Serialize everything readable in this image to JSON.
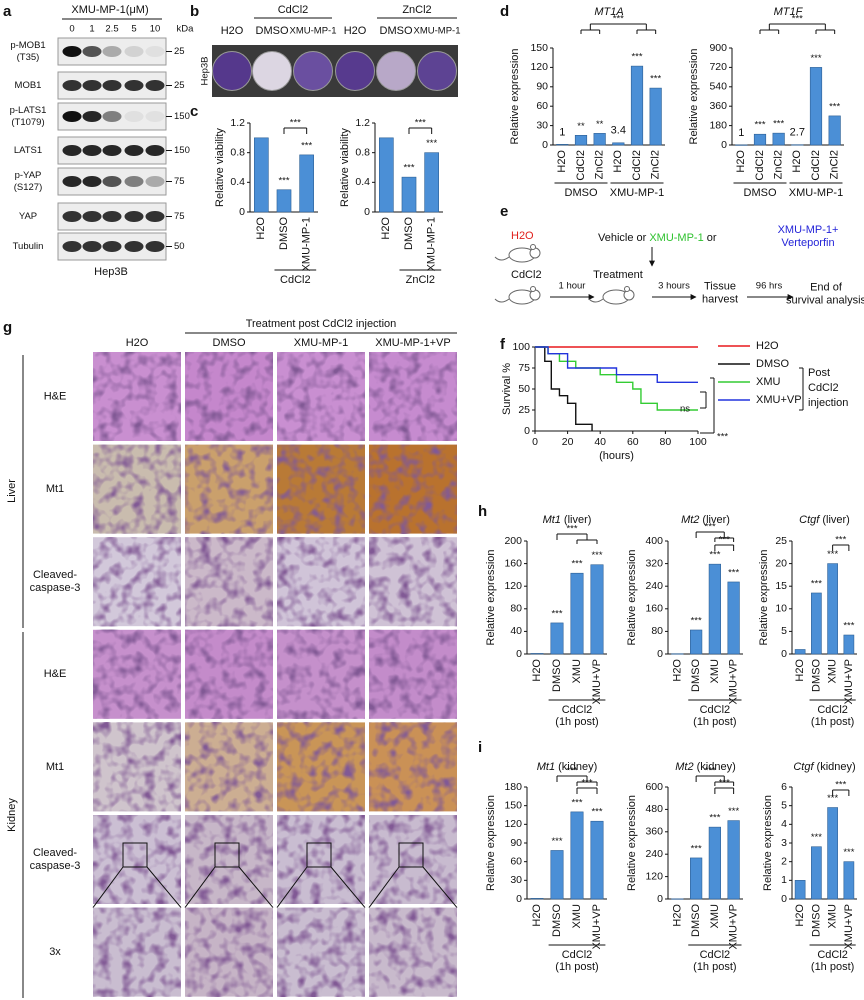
{
  "panel_labels": [
    "a",
    "b",
    "c",
    "d",
    "e",
    "f",
    "g",
    "h",
    "i"
  ],
  "blot": {
    "treatment": "XMU-MP-1(μM)",
    "doses": [
      0,
      1,
      2.5,
      5,
      10
    ],
    "unit": "kDa",
    "rows": [
      {
        "label": [
          "p-MOB1",
          "(T35)"
        ],
        "marker": 25
      },
      {
        "label": [
          "MOB1"
        ],
        "marker": 25
      },
      {
        "label": [
          "p-LATS1",
          "(T1079)"
        ],
        "marker": 150
      },
      {
        "label": [
          "LATS1"
        ],
        "marker": 150
      },
      {
        "label": [
          "p-YAP",
          "(S127)"
        ],
        "marker": 75
      },
      {
        "label": [
          "YAP"
        ],
        "marker": 75
      },
      {
        "label": [
          "Tubulin"
        ],
        "marker": 50
      }
    ],
    "cell_line": "Hep3B"
  },
  "colony": {
    "cell_line": "Hep3B",
    "groups": [
      "CdCl2",
      "ZnCl2"
    ],
    "wells": [
      "H2O",
      "DMSO",
      "XMU-MP-1",
      "H2O",
      "DMSO",
      "XMU-MP-1"
    ]
  },
  "schema": {
    "control": "H2O",
    "treatment_options": [
      "Vehicle or",
      "XMU-MP-1",
      "or",
      "XMU-MP-1+",
      "Verteporfin"
    ],
    "injection": "CdCl2",
    "step_1": "1 hour",
    "treatment": "Treatment",
    "step_2": "3 hours",
    "harvest": [
      "Tissue",
      "harvest"
    ],
    "step_3": "96 hrs",
    "endpoint": [
      "End of",
      "survival analysis"
    ]
  },
  "histology": {
    "header": "Treatment post CdCl2 injection",
    "columns": [
      "H2O",
      "DMSO",
      "XMU-MP-1",
      "XMU-MP-1+VP"
    ],
    "organs": [
      "Liver",
      "Kidney"
    ],
    "rows": [
      [
        "H&E"
      ],
      [
        "Mt1"
      ],
      [
        "Cleaved-",
        "caspase-3"
      ],
      [
        "H&E"
      ],
      [
        "Mt1"
      ],
      [
        "Cleaved-",
        "caspase-3"
      ],
      [
        "3x"
      ]
    ]
  },
  "chart_data": [
    {
      "type": "bar",
      "ylabel": "Relative viability",
      "categories": [
        "H2O",
        "DMSO",
        "XMU-MP-1"
      ],
      "values": [
        1.0,
        0.3,
        0.77
      ],
      "color": "#4b8fd6",
      "ylim": [
        0,
        1.2
      ],
      "yticks": [
        0,
        0.4,
        0.8,
        1.2
      ],
      "significance": [
        null,
        "***",
        "***"
      ],
      "comparisons": [
        "***"
      ],
      "groups": [
        [
          "CdCl2"
        ]
      ]
    },
    {
      "type": "bar",
      "ylabel": "Relative viability",
      "categories": [
        "H2O",
        "DMSO",
        "XMU-MP-1"
      ],
      "values": [
        1.0,
        0.47,
        0.8
      ],
      "color": "#4b8fd6",
      "ylim": [
        0,
        1.2
      ],
      "yticks": [
        0,
        0.4,
        0.8,
        1.2
      ],
      "significance": [
        null,
        "***",
        "***"
      ],
      "comparisons": [
        "***"
      ],
      "groups": [
        [
          "ZnCl2"
        ]
      ]
    },
    {
      "type": "bar",
      "title": "MT1A",
      "ylabel": "Relative expression",
      "categories": [
        "H2O",
        "CdCl2",
        "ZnCl2",
        "H2O",
        "CdCl2",
        "ZnCl2"
      ],
      "values": [
        1,
        15,
        18,
        3.4,
        122,
        88
      ],
      "value_labels": [
        "1",
        null,
        null,
        "3.4",
        null,
        null
      ],
      "color": "#4b8fd6",
      "ylim": [
        0,
        150
      ],
      "yticks": [
        0,
        30,
        60,
        90,
        120,
        150
      ],
      "significance": [
        null,
        "**",
        "**",
        null,
        "***",
        "***"
      ],
      "comparisons": [
        "***"
      ],
      "groups": [
        [
          "DMSO"
        ],
        [
          "XMU-MP-1"
        ]
      ]
    },
    {
      "type": "bar",
      "title": "MT1F",
      "ylabel": "Relative expression",
      "categories": [
        "H2O",
        "CdCl2",
        "ZnCl2",
        "H2O",
        "CdCl2",
        "ZnCl2"
      ],
      "values": [
        1,
        100,
        110,
        2.7,
        720,
        270
      ],
      "value_labels": [
        "1",
        null,
        null,
        "2.7",
        null,
        null
      ],
      "color": "#4b8fd6",
      "ylim": [
        0,
        900
      ],
      "yticks": [
        0,
        180,
        360,
        540,
        720,
        900
      ],
      "significance": [
        null,
        "***",
        "***",
        null,
        "***",
        "***"
      ],
      "comparisons": [
        "***"
      ],
      "groups": [
        [
          "DMSO"
        ],
        [
          "XMU-MP-1"
        ]
      ]
    },
    {
      "type": "line",
      "ylabel": "Survival %",
      "xlabel": "(hours)",
      "xlim": [
        0,
        100
      ],
      "ylim": [
        0,
        100
      ],
      "xticks": [
        0,
        20,
        40,
        60,
        80,
        100
      ],
      "yticks": [
        0,
        25,
        50,
        75,
        100
      ],
      "series": [
        {
          "name": "H2O",
          "color": "#e8191d",
          "x": [
            0,
            100
          ],
          "values": [
            100,
            100
          ]
        },
        {
          "name": "DMSO",
          "color": "#111111",
          "x": [
            0,
            6,
            6,
            10,
            10,
            15,
            15,
            20,
            20,
            25,
            25,
            35,
            35
          ],
          "values": [
            100,
            100,
            83,
            83,
            50,
            50,
            42,
            42,
            33,
            33,
            8,
            8,
            0
          ]
        },
        {
          "name": "XMU",
          "color": "#33cc33",
          "x": [
            0,
            8,
            8,
            15,
            15,
            25,
            25,
            40,
            40,
            50,
            50,
            60,
            60,
            65,
            65,
            75,
            75,
            100
          ],
          "values": [
            100,
            100,
            92,
            92,
            83,
            83,
            75,
            75,
            67,
            67,
            58,
            58,
            50,
            50,
            33,
            33,
            25,
            25
          ]
        },
        {
          "name": "XMU+VP",
          "color": "#2233dd",
          "x": [
            0,
            8,
            8,
            20,
            20,
            50,
            50,
            75,
            75,
            100
          ],
          "values": [
            100,
            100,
            92,
            92,
            75,
            75,
            67,
            67,
            58,
            58
          ]
        }
      ],
      "legend_note": [
        "Post",
        "CdCl2",
        "injection"
      ],
      "comparisons": [
        "ns",
        "***"
      ]
    },
    {
      "type": "bar",
      "title": "Mt1",
      "title_note": "(liver)",
      "ylabel": "Relative expression",
      "categories": [
        "H2O",
        "DMSO",
        "XMU",
        "XMU+VP"
      ],
      "values": [
        1,
        55,
        143,
        158
      ],
      "color": "#4b8fd6",
      "ylim": [
        0,
        200
      ],
      "yticks": [
        0,
        40,
        80,
        120,
        160,
        200
      ],
      "significance": [
        null,
        "***",
        "***",
        "***"
      ],
      "comparisons": [
        "***"
      ],
      "groups": [
        [
          "CdCl2",
          "(1h post)"
        ]
      ]
    },
    {
      "type": "bar",
      "title": "Mt2",
      "title_note": "(liver)",
      "ylabel": "Relative expression",
      "categories": [
        "H2O",
        "DMSO",
        "XMU",
        "XMU+VP"
      ],
      "values": [
        1,
        85,
        318,
        255
      ],
      "color": "#4b8fd6",
      "ylim": [
        0,
        400
      ],
      "yticks": [
        0,
        80,
        160,
        240,
        320,
        400
      ],
      "significance": [
        null,
        "***",
        "***",
        "***"
      ],
      "comparisons": [
        "***",
        "***"
      ],
      "groups": [
        [
          "CdCl2",
          "(1h post)"
        ]
      ]
    },
    {
      "type": "bar",
      "title": "Ctgf",
      "title_note": "(liver)",
      "ylabel": "Relative expression",
      "categories": [
        "H2O",
        "DMSO",
        "XMU",
        "XMU+VP"
      ],
      "values": [
        1,
        13.5,
        20,
        4.2
      ],
      "color": "#4b8fd6",
      "ylim": [
        0,
        25
      ],
      "yticks": [
        0,
        5,
        10,
        15,
        20,
        25
      ],
      "significance": [
        null,
        "***",
        "***",
        "***"
      ],
      "comparisons": [
        "***"
      ],
      "groups": [
        [
          "CdCl2",
          "(1h post)"
        ]
      ]
    },
    {
      "type": "bar",
      "title": "Mt1",
      "title_note": "(kidney)",
      "ylabel": "Relative expression",
      "categories": [
        "H2O",
        "DMSO",
        "XMU",
        "XMU+VP"
      ],
      "values": [
        1,
        78,
        140,
        125
      ],
      "color": "#4b8fd6",
      "ylim": [
        0,
        180
      ],
      "yticks": [
        0,
        30,
        60,
        90,
        120,
        150,
        180
      ],
      "significance": [
        null,
        "***",
        "***",
        "***"
      ],
      "comparisons": [
        "***",
        "***"
      ],
      "groups": [
        [
          "CdCl2",
          "(1h post)"
        ]
      ]
    },
    {
      "type": "bar",
      "title": "Mt2",
      "title_note": "(kidney)",
      "ylabel": "Relative expression",
      "categories": [
        "H2O",
        "DMSO",
        "XMU",
        "XMU+VP"
      ],
      "values": [
        1,
        220,
        385,
        420
      ],
      "color": "#4b8fd6",
      "ylim": [
        0,
        600
      ],
      "yticks": [
        0,
        120,
        240,
        360,
        480,
        600
      ],
      "significance": [
        null,
        "***",
        "***",
        "***"
      ],
      "comparisons": [
        "***",
        "***"
      ],
      "groups": [
        [
          "CdCl2",
          "(1h post)"
        ]
      ]
    },
    {
      "type": "bar",
      "title": "Ctgf",
      "title_note": "(kidney)",
      "ylabel": "Relative expression",
      "categories": [
        "H2O",
        "DMSO",
        "XMU",
        "XMU+VP"
      ],
      "values": [
        1,
        2.8,
        4.9,
        2.0
      ],
      "color": "#4b8fd6",
      "ylim": [
        0,
        6
      ],
      "yticks": [
        0,
        1,
        2,
        3,
        4,
        5,
        6
      ],
      "significance": [
        null,
        "***",
        "***",
        "***"
      ],
      "comparisons": [
        "***"
      ],
      "groups": [
        [
          "CdCl2",
          "(1h post)"
        ]
      ]
    }
  ]
}
